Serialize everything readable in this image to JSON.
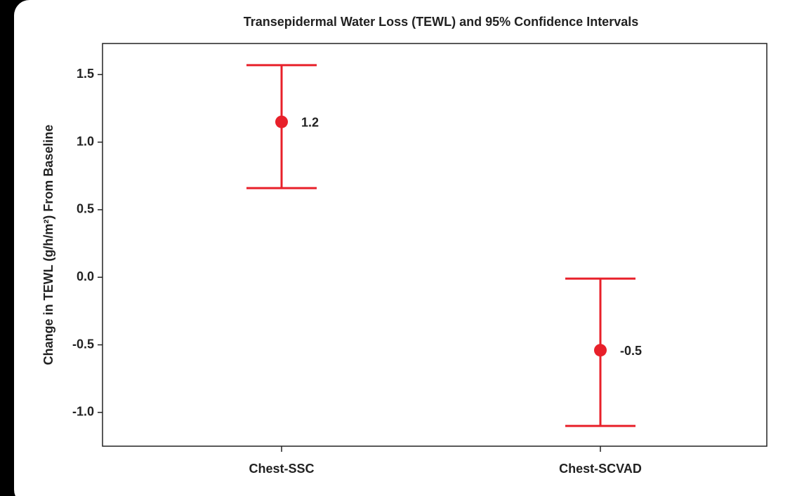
{
  "chart_data": {
    "type": "errorbar",
    "title": "Transepidermal Water Loss (TEWL) and 95% Confidence Intervals",
    "y_label": "Change in TEWL (g/h/m²) From Baseline",
    "categories": [
      "Chest-SSC",
      "Chest-SCVAD"
    ],
    "values": [
      1.15,
      -0.54
    ],
    "value_labels": [
      "1.2",
      "-0.5"
    ],
    "ci_low": [
      0.66,
      -1.1
    ],
    "ci_high": [
      1.57,
      -0.01
    ],
    "color": "#e8202a",
    "ylim": [
      -1.25,
      1.73
    ],
    "yticks": [
      {
        "value": -1,
        "label": "-1.0"
      },
      {
        "value": -0.5,
        "label": "-0.5"
      },
      {
        "value": 0,
        "label": "0.0"
      },
      {
        "value": 0.5,
        "label": "0.5"
      },
      {
        "value": 1,
        "label": "1.0"
      },
      {
        "value": 1.5,
        "label": "1.5"
      }
    ],
    "grid": false
  }
}
